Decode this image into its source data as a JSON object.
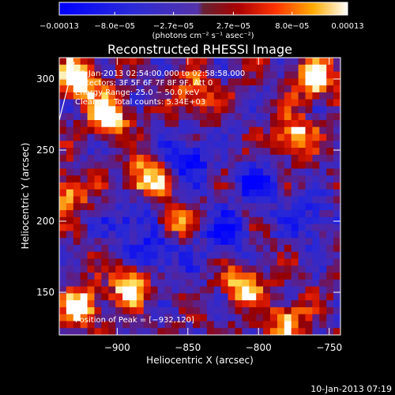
{
  "chart_data": {
    "type": "heatmap",
    "title": "Reconstructed RHESSI Image",
    "xlabel": "Heliocentric X (arcsec)",
    "ylabel": "Heliocentric Y (arcsec)",
    "xlim": [
      -941,
      -742
    ],
    "ylim": [
      120,
      315
    ],
    "x_ticks": [
      -900,
      -850,
      -800,
      -750
    ],
    "x_tick_labels": [
      "−900",
      "−850",
      "−800",
      "−750"
    ],
    "y_ticks": [
      150,
      200,
      250,
      300
    ],
    "y_tick_labels": [
      "150",
      "200",
      "250",
      "300"
    ],
    "colorbar": {
      "colormap": "hot-blue",
      "range": [
        -0.00013,
        0.00013
      ],
      "tick_values": [
        -0.00013,
        -8e-05,
        -2.7e-05,
        2.7e-05,
        8e-05,
        0.00013
      ],
      "tick_labels": [
        "−0.00013",
        "−8.0e−05",
        "−2.7e−05",
        "2.7e−05",
        "8.0e−05",
        "0.00013"
      ],
      "unit_label": "(photons cm⁻² s⁻¹ asec⁻²)"
    },
    "annotations": {
      "time_range": "10-Jan-2013 02:54:00.000 to 02:58:58.000",
      "detectors": "Detectors: 3F 5F 6F 7F 8F 9F, Att 0",
      "energy_range": "Energy Range: 25.0 − 50.0 keV",
      "clean_label": "Clean",
      "total_counts": "Total counts: 5.34E+03",
      "peak_position": "Position of Peak = [−932,120]"
    },
    "bright_regions": [
      {
        "x": -927,
        "y": 300,
        "strength": 1.0
      },
      {
        "x": -905,
        "y": 275,
        "strength": 0.9
      },
      {
        "x": -880,
        "y": 230,
        "strength": 0.8
      },
      {
        "x": -760,
        "y": 300,
        "strength": 0.95
      },
      {
        "x": -775,
        "y": 260,
        "strength": 0.8
      },
      {
        "x": -890,
        "y": 155,
        "strength": 0.9
      },
      {
        "x": -925,
        "y": 140,
        "strength": 0.85
      },
      {
        "x": -810,
        "y": 155,
        "strength": 0.75
      },
      {
        "x": -780,
        "y": 130,
        "strength": 0.7
      },
      {
        "x": -845,
        "y": 290,
        "strength": 0.6
      },
      {
        "x": -860,
        "y": 200,
        "strength": 0.6
      },
      {
        "x": -935,
        "y": 220,
        "strength": 0.7
      }
    ],
    "dark_regions": [
      {
        "x": -850,
        "y": 245,
        "strength": 1.0
      },
      {
        "x": -825,
        "y": 190,
        "strength": 0.9
      },
      {
        "x": -870,
        "y": 175,
        "strength": 0.85
      },
      {
        "x": -800,
        "y": 225,
        "strength": 0.8
      },
      {
        "x": -765,
        "y": 200,
        "strength": 0.7
      },
      {
        "x": -890,
        "y": 200,
        "strength": 0.8
      }
    ],
    "grid": false
  },
  "footer": {
    "timestamp": "10-Jan-2013 07:19"
  }
}
